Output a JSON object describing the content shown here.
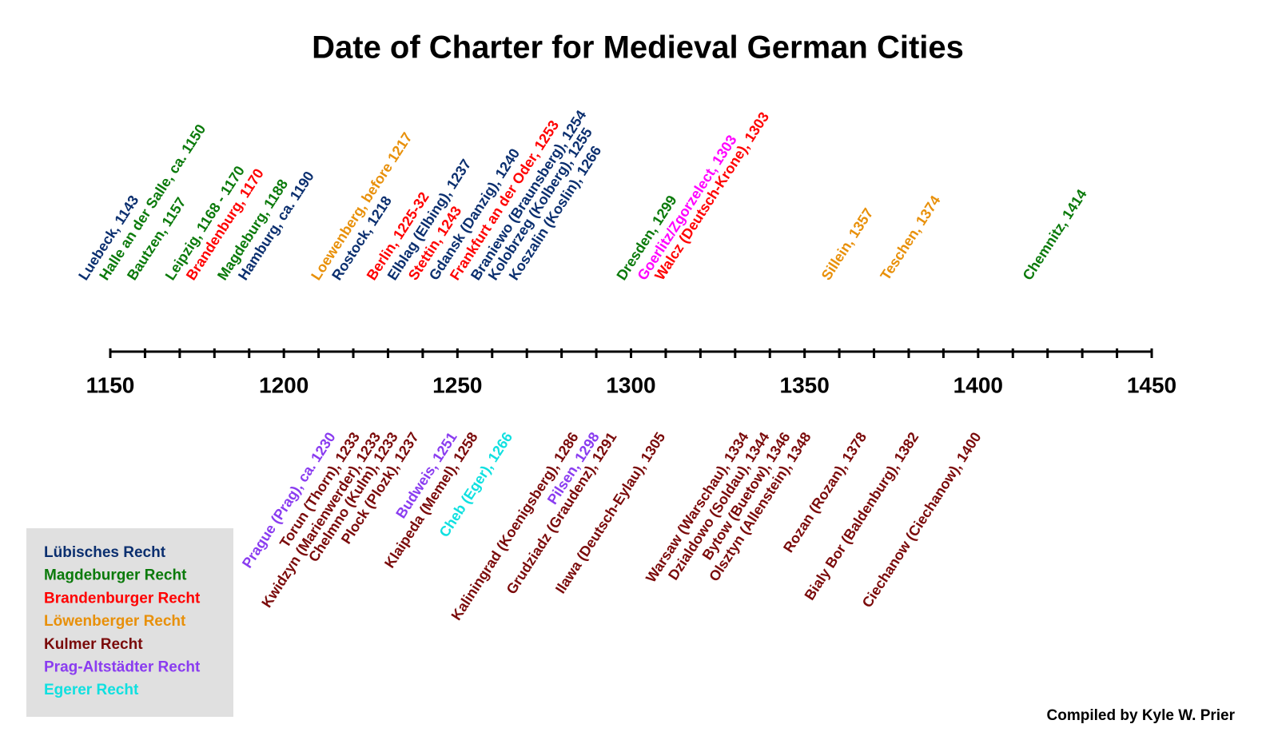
{
  "chart_data": {
    "type": "timeline",
    "title": "Date of Charter for Medieval German Cities",
    "footnote": "Compiled by Kyle W. Prier",
    "xlim": [
      1150,
      1450
    ],
    "xticks": [
      1150,
      1200,
      1250,
      1300,
      1350,
      1400,
      1450
    ],
    "minor_xticks": [
      1160,
      1170,
      1180,
      1190,
      1210,
      1220,
      1230,
      1240,
      1260,
      1270,
      1280,
      1290,
      1310,
      1320,
      1330,
      1340,
      1360,
      1370,
      1380,
      1390,
      1410,
      1420,
      1430,
      1440
    ],
    "legend": [
      {
        "name": "Lübisches Recht",
        "color": "#0b2f6f"
      },
      {
        "name": "Magdeburger Recht",
        "color": "#0b7a0b"
      },
      {
        "name": "Brandenburger Recht",
        "color": "#ff0000"
      },
      {
        "name": "Löwenberger Recht",
        "color": "#e8900a"
      },
      {
        "name": "Kulmer Recht",
        "color": "#7a0a0a"
      },
      {
        "name": "Prag-Altstädter Recht",
        "color": "#8a3cf0"
      },
      {
        "name": "Egerer Recht",
        "color": "#10e0e0"
      }
    ],
    "events": [
      {
        "label": "Luebeck, 1143",
        "x": 1143,
        "color": "#0b2f6f",
        "side": "above"
      },
      {
        "label": "Halle an der Salle, ca. 1150",
        "x": 1149,
        "color": "#0b7a0b",
        "side": "above"
      },
      {
        "label": "Bautzen, 1157",
        "x": 1157,
        "color": "#0b7a0b",
        "side": "above"
      },
      {
        "label": "Leipzig, 1168 - 1170",
        "x": 1168,
        "color": "#0b7a0b",
        "side": "above"
      },
      {
        "label": "Brandenburg, 1170",
        "x": 1174,
        "color": "#ff0000",
        "side": "above"
      },
      {
        "label": "Magdeburg, 1188",
        "x": 1183,
        "color": "#0b7a0b",
        "side": "above"
      },
      {
        "label": "Hamburg, ca. 1190",
        "x": 1189,
        "color": "#0b2f6f",
        "side": "above"
      },
      {
        "label": "Loewenberg, before 1217",
        "x": 1210,
        "color": "#e8900a",
        "side": "above"
      },
      {
        "label": "Rostock, 1218",
        "x": 1216,
        "color": "#0b2f6f",
        "side": "above"
      },
      {
        "label": "Berlin, 1225-32",
        "x": 1226,
        "color": "#ff0000",
        "side": "above"
      },
      {
        "label": "Elblag (Elbing), 1237",
        "x": 1232,
        "color": "#0b2f6f",
        "side": "above"
      },
      {
        "label": "Stettin, 1243",
        "x": 1238,
        "color": "#ff0000",
        "side": "above"
      },
      {
        "label": "Gdansk (Danzig), 1240",
        "x": 1244,
        "color": "#0b2f6f",
        "side": "above"
      },
      {
        "label": "Frankfurt an der Oder, 1253",
        "x": 1250,
        "color": "#ff0000",
        "side": "above"
      },
      {
        "label": "Braniewo (Braunsberg), 1254",
        "x": 1256,
        "color": "#0b2f6f",
        "side": "above"
      },
      {
        "label": "Kolobrzeg (Kolberg), 1255",
        "x": 1261,
        "color": "#0b2f6f",
        "side": "above"
      },
      {
        "label": "Koszalin (Koslin), 1266",
        "x": 1267,
        "color": "#0b2f6f",
        "side": "above"
      },
      {
        "label": "Dresden, 1299",
        "x": 1298,
        "color": "#0b7a0b",
        "side": "above"
      },
      {
        "label": "Goerlitz/Zgorzelect, 1303",
        "x": 1304,
        "color": "#ff00ff",
        "side": "above"
      },
      {
        "label": "Walcz (Deutsch-Krone), 1303",
        "x": 1309,
        "color": "#ff0000",
        "side": "above"
      },
      {
        "label": "Sillein, 1357",
        "x": 1357,
        "color": "#e8900a",
        "side": "above"
      },
      {
        "label": "Teschen, 1374",
        "x": 1374,
        "color": "#e8900a",
        "side": "above"
      },
      {
        "label": "Chemnitz, 1414",
        "x": 1415,
        "color": "#0b7a0b",
        "side": "above"
      },
      {
        "label": "Prague (Prag), ca. 1230",
        "x": 1215,
        "color": "#8a3cf0",
        "side": "below"
      },
      {
        "label": "Torun (Thorn), 1233",
        "x": 1222,
        "color": "#7a0a0a",
        "side": "below"
      },
      {
        "label": "Kwidzyn (Marienwerder), 1233",
        "x": 1228,
        "color": "#7a0a0a",
        "side": "below"
      },
      {
        "label": "Chelmno (Kulm), 1233",
        "x": 1233,
        "color": "#7a0a0a",
        "side": "below"
      },
      {
        "label": "Plock (Plozk), 1237",
        "x": 1239,
        "color": "#7a0a0a",
        "side": "below"
      },
      {
        "label": "Budweis, 1251",
        "x": 1250,
        "color": "#8a3cf0",
        "side": "below"
      },
      {
        "label": "Klaipeda (Memel), 1258",
        "x": 1256,
        "color": "#7a0a0a",
        "side": "below"
      },
      {
        "label": "Cheb (Eger), 1266",
        "x": 1266,
        "color": "#10e0e0",
        "side": "below"
      },
      {
        "label": "Kaliningrad (Koenigsberg), 1286",
        "x": 1285,
        "color": "#7a0a0a",
        "side": "below"
      },
      {
        "label": "Pilsen, 1298",
        "x": 1291,
        "color": "#8a3cf0",
        "side": "below"
      },
      {
        "label": "Grudziadz (Graudenz), 1291",
        "x": 1296,
        "color": "#7a0a0a",
        "side": "below"
      },
      {
        "label": "Ilawa (Deutsch-Eylau), 1305",
        "x": 1310,
        "color": "#7a0a0a",
        "side": "below"
      },
      {
        "label": "Warsaw (Warschau), 1334",
        "x": 1334,
        "color": "#7a0a0a",
        "side": "below"
      },
      {
        "label": "Dzialdowo (Soldau), 1344",
        "x": 1340,
        "color": "#7a0a0a",
        "side": "below"
      },
      {
        "label": "Bytow (Buetow), 1346",
        "x": 1346,
        "color": "#7a0a0a",
        "side": "below"
      },
      {
        "label": "Olsztyn (Allenstein), 1348",
        "x": 1352,
        "color": "#7a0a0a",
        "side": "below"
      },
      {
        "label": "Rozan (Rozan), 1378",
        "x": 1368,
        "color": "#7a0a0a",
        "side": "below"
      },
      {
        "label": "Bialy Bor (Baldenburg), 1382",
        "x": 1383,
        "color": "#7a0a0a",
        "side": "below"
      },
      {
        "label": "Ciechanow (Ciechanow), 1400",
        "x": 1401,
        "color": "#7a0a0a",
        "side": "below"
      }
    ]
  }
}
